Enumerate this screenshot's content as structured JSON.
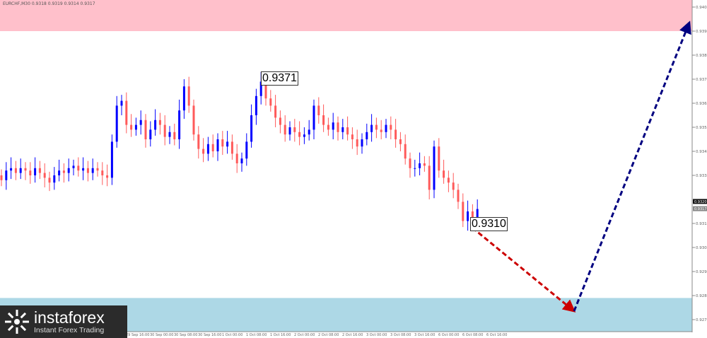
{
  "header": {
    "symbol_line": "EURCHF,M30  0.9318 0.9319 0.9314 0.9317"
  },
  "logo": {
    "name": "instaforex",
    "tagline": "Instant Forex Trading"
  },
  "chart_data": {
    "type": "candlestick",
    "symbol": "EURCHF",
    "timeframe": "M30",
    "ylim": [
      0.9266,
      0.9404
    ],
    "y_ticks": [
      "0.9401",
      "0.9391",
      "0.9381",
      "0.9371",
      "0.9361",
      "0.9351",
      "0.9341",
      "0.9331",
      "0.9311",
      "0.9301",
      "0.9291",
      "0.9281",
      "0.9271"
    ],
    "current_price_labels": [
      "0.9320",
      "0.9317"
    ],
    "x_ticks": [
      "29 Sep 16:00",
      "30 Sep 00:00",
      "30 Sep 08:00",
      "30 Sep 16:00",
      "1 Oct 00:00",
      "1 Oct 08:00",
      "1 Oct 16:00",
      "2 Oct 00:00",
      "2 Oct 08:00",
      "2 Oct 16:00",
      "3 Oct 00:00",
      "3 Oct 08:00",
      "3 Oct 16:00",
      "6 Oct 00:00",
      "6 Oct 08:00",
      "6 Oct 16:00"
    ],
    "closes": [
      0.9329,
      0.9333,
      0.9334,
      0.9332,
      0.9334,
      0.9333,
      0.9331,
      0.9334,
      0.9332,
      0.933,
      0.9328,
      0.9331,
      0.9333,
      0.9332,
      0.9334,
      0.9335,
      0.9333,
      0.9334,
      0.9332,
      0.9334,
      0.9333,
      0.9331,
      0.933,
      0.9345,
      0.936,
      0.9362,
      0.9352,
      0.935,
      0.9352,
      0.9354,
      0.9346,
      0.935,
      0.9354,
      0.9352,
      0.9347,
      0.9349,
      0.9346,
      0.9358,
      0.9368,
      0.936,
      0.9348,
      0.9342,
      0.934,
      0.9344,
      0.9341,
      0.9346,
      0.9343,
      0.9345,
      0.934,
      0.9336,
      0.9338,
      0.9345,
      0.9356,
      0.9364,
      0.937,
      0.9363,
      0.936,
      0.9355,
      0.9352,
      0.9348,
      0.9351,
      0.9349,
      0.9347,
      0.9348,
      0.935,
      0.936,
      0.9356,
      0.9352,
      0.935,
      0.9353,
      0.9349,
      0.9351,
      0.9348,
      0.9346,
      0.9343,
      0.9346,
      0.9349,
      0.9352,
      0.935,
      0.9349,
      0.9352,
      0.935,
      0.9346,
      0.9344,
      0.9338,
      0.9334,
      0.9334,
      0.9336,
      0.9335,
      0.9325,
      0.9343,
      0.9333,
      0.933,
      0.9328,
      0.9325,
      0.932,
      0.9312,
      0.9316,
      0.9313,
      0.9317
    ],
    "annotations": [
      {
        "label": "0.9371",
        "price": 0.9371
      },
      {
        "label": "0.9310",
        "price": 0.931
      }
    ],
    "zones": [
      {
        "kind": "resistance",
        "from": 0.9391,
        "to": 0.9404,
        "color": "#ffc0cb"
      },
      {
        "kind": "support",
        "from": 0.9266,
        "to": 0.928,
        "color": "#add8e6"
      }
    ],
    "forecast": [
      {
        "from": 0.931,
        "to": 0.9275,
        "color": "#cc0000"
      },
      {
        "from": 0.9275,
        "to": 0.9392,
        "color": "#000080"
      }
    ],
    "colors": {
      "bull": "#0000ff",
      "bear": "#ff5a5a"
    }
  }
}
